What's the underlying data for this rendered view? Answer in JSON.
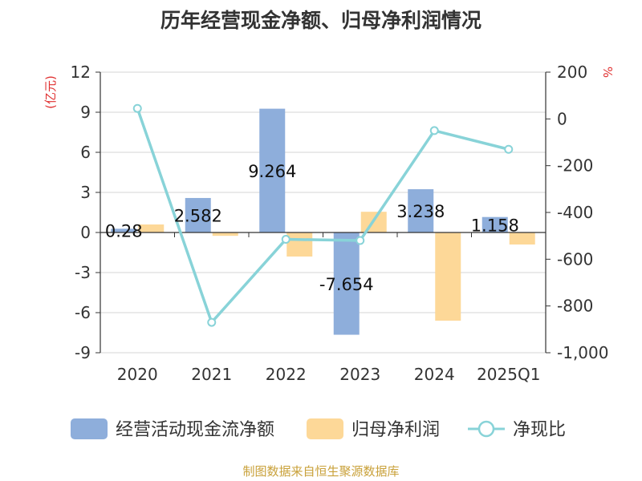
{
  "chart_data": {
    "type": "bar",
    "title": "历年经营现金净额、归母净利润情况",
    "categories": [
      "2020",
      "2021",
      "2022",
      "2023",
      "2024",
      "2025Q1"
    ],
    "series": [
      {
        "name": "经营活动现金流净额",
        "type": "bar",
        "axis": "left",
        "color": "#8eaedb",
        "values": [
          0.28,
          2.582,
          9.264,
          -7.654,
          3.238,
          1.158
        ],
        "labels": [
          "0.28",
          "2.582",
          "9.264",
          "-7.654",
          "3.238",
          "1.158"
        ]
      },
      {
        "name": "归母净利润",
        "type": "bar",
        "axis": "left",
        "color": "#fdd898",
        "values": [
          0.6,
          -0.25,
          -1.8,
          1.55,
          -6.6,
          -0.9
        ]
      },
      {
        "name": "净现比",
        "type": "line",
        "axis": "right",
        "color": "#88d3d8",
        "values": [
          45,
          -870,
          -515,
          -520,
          -50,
          -130
        ]
      }
    ],
    "y_left": {
      "label": "(亿元)",
      "min": -9,
      "max": 12,
      "ticks": [
        12,
        9,
        6,
        3,
        0,
        -3,
        -6,
        -9
      ],
      "tick_labels": [
        "12",
        "9",
        "6",
        "3",
        "0",
        "-3",
        "-6",
        "-9"
      ]
    },
    "y_right": {
      "label": "%",
      "min": -1000,
      "max": 200,
      "ticks": [
        200,
        0,
        -200,
        -400,
        -600,
        -800,
        -1000
      ],
      "tick_labels": [
        "200",
        "0",
        "-200",
        "-400",
        "-600",
        "-800",
        "-1,000"
      ]
    },
    "legend_position": "bottom",
    "grid": true
  },
  "source_note": "制图数据来自恒生聚源数据库"
}
